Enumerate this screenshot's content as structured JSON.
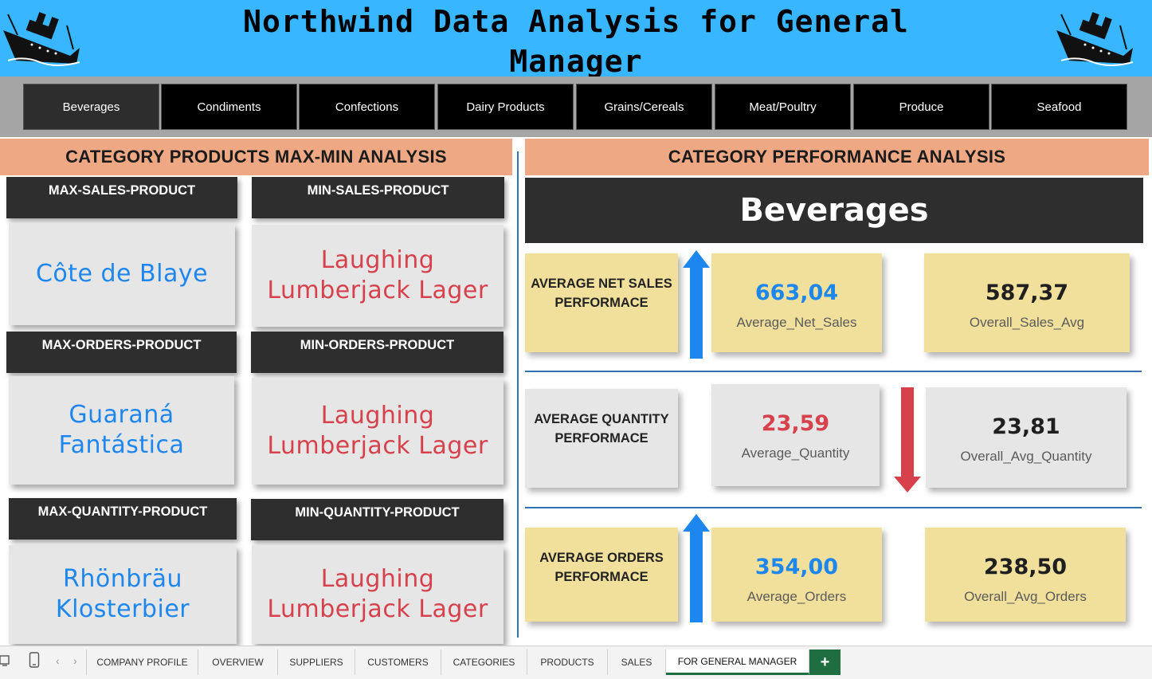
{
  "header": {
    "title": "Northwind Data Analysis for General Manager"
  },
  "categories": [
    "Beverages",
    "Condiments",
    "Confections",
    "Dairy Products",
    "Grains/Cereals",
    "Meat/Poultry",
    "Produce",
    "Seafood"
  ],
  "selected_category": "Beverages",
  "left_panel": {
    "heading": "CATEGORY PRODUCTS MAX-MIN ANALYSIS",
    "max_sales_label": "MAX-SALES-PRODUCT",
    "max_sales_value": "Côte de Blaye",
    "min_sales_label": "MIN-SALES-PRODUCT",
    "min_sales_value": "Laughing Lumberjack Lager",
    "max_orders_label": "MAX-ORDERS-PRODUCT",
    "max_orders_value": "Guaraná Fantástica",
    "min_orders_label": "MIN-ORDERS-PRODUCT",
    "min_orders_value": "Laughing Lumberjack Lager",
    "max_quantity_label": "MAX-QUANTITY-PRODUCT",
    "max_quantity_value": "Rhönbräu Klosterbier",
    "min_quantity_label": "MIN-QUANTITY-PRODUCT",
    "min_quantity_value": "Laughing Lumberjack Lager"
  },
  "right_panel": {
    "heading": "CATEGORY PERFORMANCE ANALYSIS",
    "category_title": "Beverages",
    "net_sales": {
      "label": "AVERAGE NET SALES PERFORMACE",
      "value": "663,04",
      "value_caption": "Average_Net_Sales",
      "overall": "587,37",
      "overall_caption": "Overall_Sales_Avg",
      "trend": "up"
    },
    "quantity": {
      "label": "AVERAGE QUANTITY PERFORMACE",
      "value": "23,59",
      "value_caption": "Average_Quantity",
      "overall": "23,81",
      "overall_caption": "Overall_Avg_Quantity",
      "trend": "down"
    },
    "orders": {
      "label": "AVERAGE ORDERS PERFORMACE",
      "value": "354,00",
      "value_caption": "Average_Orders",
      "overall": "238,50",
      "overall_caption": "Overall_Avg_Orders",
      "trend": "up"
    }
  },
  "colors": {
    "header_bg": "#38b6ff",
    "section_head_bg": "#efa884",
    "up_color": "#1e87ef",
    "down_color": "#d6414c",
    "card_yellow": "#f0e09b",
    "sheet_green": "#1e6e42"
  },
  "sheets": {
    "tabs": [
      "COMPANY PROFILE",
      "OVERVIEW",
      "SUPPLIERS",
      "CUSTOMERS",
      "CATEGORIES",
      "PRODUCTS",
      "SALES",
      "FOR GENERAL MANAGER"
    ],
    "active": "FOR GENERAL MANAGER",
    "add_label": "+"
  },
  "icons": {
    "header": "ship-icon",
    "sheet_prev": "chevron-left-icon",
    "sheet_next": "chevron-right-icon"
  }
}
